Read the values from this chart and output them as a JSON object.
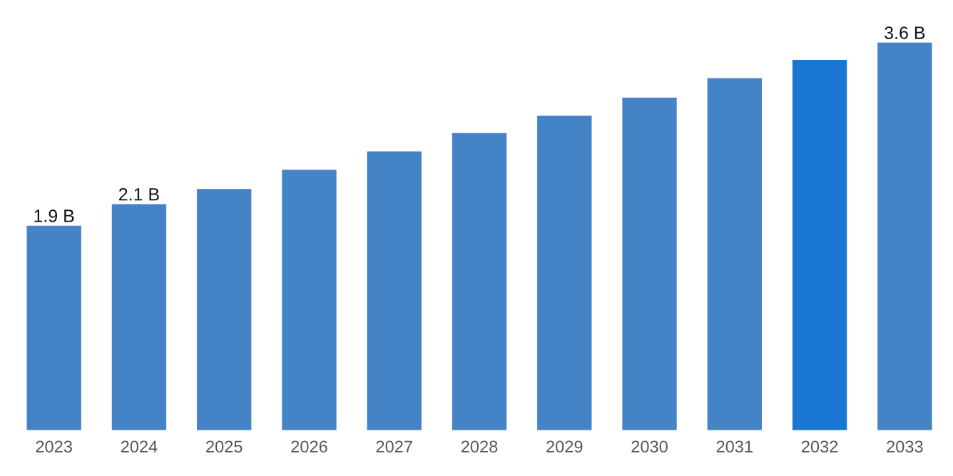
{
  "chart_data": {
    "type": "bar",
    "categories": [
      "2023",
      "2024",
      "2025",
      "2026",
      "2027",
      "2028",
      "2029",
      "2030",
      "2031",
      "2032",
      "2033"
    ],
    "values": [
      1.9,
      2.1,
      2.24,
      2.42,
      2.59,
      2.76,
      2.92,
      3.09,
      3.27,
      3.44,
      3.6
    ],
    "value_labels": [
      "1.9 B",
      "2.1 B",
      null,
      null,
      null,
      null,
      null,
      null,
      null,
      null,
      "3.6 B"
    ],
    "colors": [
      "#4383c6",
      "#4383c6",
      "#4383c6",
      "#4383c6",
      "#4383c6",
      "#4383c6",
      "#4383c6",
      "#4383c6",
      "#4383c6",
      "#1976d2",
      "#4383c6"
    ],
    "tick_labels": "x",
    "grid": false,
    "legend": false
  }
}
